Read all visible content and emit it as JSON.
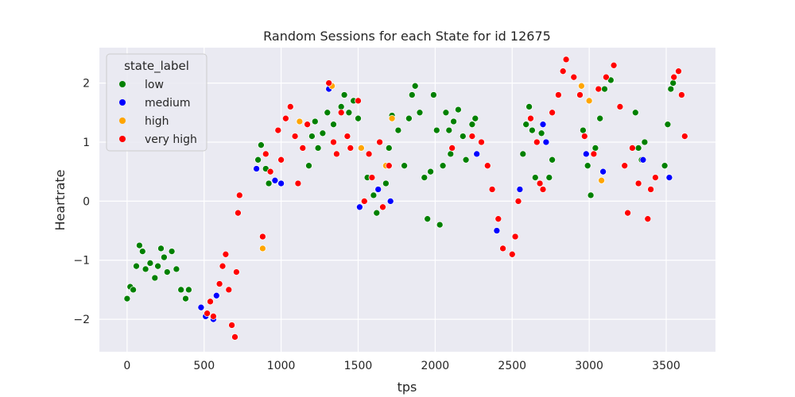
{
  "chart_data": {
    "type": "scatter",
    "title": "Random Sessions for each State for id 12675",
    "xlabel": "tps",
    "ylabel": "Heartrate",
    "xlim": [
      -180,
      3820
    ],
    "ylim": [
      -2.55,
      2.6
    ],
    "xticks": [
      0,
      500,
      1000,
      1500,
      2000,
      2500,
      3000,
      3500
    ],
    "xtick_labels": [
      "0",
      "500",
      "1000",
      "1500",
      "2000",
      "2500",
      "3000",
      "3500"
    ],
    "yticks": [
      -2,
      -1,
      0,
      1,
      2
    ],
    "ytick_labels": [
      "−2",
      "−1",
      "0",
      "1",
      "2"
    ],
    "grid": true,
    "legend": {
      "title": "state_label",
      "placement": "top-left",
      "entries": [
        {
          "label": "low",
          "color": "#008000"
        },
        {
          "label": "medium",
          "color": "#0000ff"
        },
        {
          "label": "high",
          "color": "#ffa500"
        },
        {
          "label": "very high",
          "color": "#ff0000"
        }
      ]
    },
    "series": [
      {
        "name": "low",
        "color": "#008000",
        "points": [
          [
            0,
            -1.65
          ],
          [
            20,
            -1.45
          ],
          [
            40,
            -1.5
          ],
          [
            60,
            -1.1
          ],
          [
            80,
            -0.75
          ],
          [
            100,
            -0.85
          ],
          [
            120,
            -1.15
          ],
          [
            150,
            -1.05
          ],
          [
            180,
            -1.3
          ],
          [
            200,
            -1.1
          ],
          [
            220,
            -0.8
          ],
          [
            240,
            -0.95
          ],
          [
            260,
            -1.2
          ],
          [
            290,
            -0.85
          ],
          [
            320,
            -1.15
          ],
          [
            350,
            -1.5
          ],
          [
            380,
            -1.65
          ],
          [
            400,
            -1.5
          ],
          [
            850,
            0.7
          ],
          [
            870,
            0.95
          ],
          [
            900,
            0.55
          ],
          [
            920,
            0.3
          ],
          [
            1180,
            0.6
          ],
          [
            1200,
            1.1
          ],
          [
            1220,
            1.35
          ],
          [
            1240,
            0.9
          ],
          [
            1270,
            1.15
          ],
          [
            1300,
            1.5
          ],
          [
            1340,
            1.3
          ],
          [
            1390,
            1.6
          ],
          [
            1410,
            1.8
          ],
          [
            1440,
            1.5
          ],
          [
            1470,
            1.7
          ],
          [
            1500,
            1.4
          ],
          [
            1520,
            0.9
          ],
          [
            1560,
            0.4
          ],
          [
            1600,
            0.1
          ],
          [
            1620,
            -0.2
          ],
          [
            1680,
            0.3
          ],
          [
            1700,
            0.9
          ],
          [
            1720,
            1.45
          ],
          [
            1760,
            1.2
          ],
          [
            1800,
            0.6
          ],
          [
            1830,
            1.4
          ],
          [
            1850,
            1.8
          ],
          [
            1870,
            1.95
          ],
          [
            1900,
            1.5
          ],
          [
            1930,
            0.4
          ],
          [
            1950,
            -0.3
          ],
          [
            1970,
            0.5
          ],
          [
            1990,
            1.8
          ],
          [
            2010,
            1.2
          ],
          [
            2030,
            -0.4
          ],
          [
            2050,
            0.6
          ],
          [
            2070,
            1.5
          ],
          [
            2090,
            1.2
          ],
          [
            2100,
            0.8
          ],
          [
            2120,
            1.35
          ],
          [
            2150,
            1.55
          ],
          [
            2180,
            1.1
          ],
          [
            2200,
            0.7
          ],
          [
            2240,
            1.3
          ],
          [
            2260,
            1.4
          ],
          [
            2570,
            0.8
          ],
          [
            2590,
            1.3
          ],
          [
            2610,
            1.6
          ],
          [
            2630,
            1.2
          ],
          [
            2650,
            0.4
          ],
          [
            2690,
            1.15
          ],
          [
            2740,
            0.4
          ],
          [
            2760,
            0.7
          ],
          [
            2960,
            1.2
          ],
          [
            2990,
            0.6
          ],
          [
            3010,
            0.1
          ],
          [
            3040,
            0.9
          ],
          [
            3070,
            1.4
          ],
          [
            3100,
            1.9
          ],
          [
            3140,
            2.05
          ],
          [
            3300,
            1.5
          ],
          [
            3320,
            0.9
          ],
          [
            3340,
            0.7
          ],
          [
            3360,
            1.0
          ],
          [
            3490,
            0.6
          ],
          [
            3510,
            1.3
          ],
          [
            3530,
            1.9
          ],
          [
            3545,
            2.0
          ]
        ]
      },
      {
        "name": "medium",
        "color": "#0000ff",
        "points": [
          [
            480,
            -1.8
          ],
          [
            510,
            -1.95
          ],
          [
            560,
            -2.0
          ],
          [
            580,
            -1.6
          ],
          [
            840,
            0.55
          ],
          [
            960,
            0.35
          ],
          [
            1000,
            0.3
          ],
          [
            1310,
            1.9
          ],
          [
            1510,
            -0.1
          ],
          [
            1630,
            0.2
          ],
          [
            1710,
            0.0
          ],
          [
            2270,
            0.8
          ],
          [
            2400,
            -0.5
          ],
          [
            2550,
            0.2
          ],
          [
            2700,
            1.3
          ],
          [
            2720,
            1.0
          ],
          [
            2980,
            0.8
          ],
          [
            3090,
            0.5
          ],
          [
            3350,
            0.7
          ],
          [
            3520,
            0.4
          ]
        ]
      },
      {
        "name": "high",
        "color": "#ffa500",
        "points": [
          [
            880,
            -0.8
          ],
          [
            1120,
            1.35
          ],
          [
            1330,
            1.95
          ],
          [
            1520,
            0.9
          ],
          [
            1680,
            0.6
          ],
          [
            1720,
            1.4
          ],
          [
            2950,
            1.95
          ],
          [
            3000,
            1.7
          ],
          [
            3080,
            0.35
          ]
        ]
      },
      {
        "name": "very high",
        "color": "#ff0000",
        "points": [
          [
            520,
            -1.9
          ],
          [
            540,
            -1.7
          ],
          [
            560,
            -1.95
          ],
          [
            600,
            -1.4
          ],
          [
            620,
            -1.1
          ],
          [
            640,
            -0.9
          ],
          [
            660,
            -1.5
          ],
          [
            680,
            -2.1
          ],
          [
            700,
            -2.3
          ],
          [
            710,
            -1.2
          ],
          [
            720,
            -0.2
          ],
          [
            730,
            0.1
          ],
          [
            880,
            -0.6
          ],
          [
            900,
            0.8
          ],
          [
            930,
            0.5
          ],
          [
            980,
            1.2
          ],
          [
            1000,
            0.7
          ],
          [
            1030,
            1.4
          ],
          [
            1060,
            1.6
          ],
          [
            1090,
            1.1
          ],
          [
            1110,
            0.3
          ],
          [
            1140,
            0.9
          ],
          [
            1170,
            1.3
          ],
          [
            1310,
            2.0
          ],
          [
            1340,
            1.0
          ],
          [
            1360,
            0.8
          ],
          [
            1390,
            1.5
          ],
          [
            1430,
            1.1
          ],
          [
            1450,
            0.9
          ],
          [
            1500,
            1.7
          ],
          [
            1540,
            0.0
          ],
          [
            1570,
            0.8
          ],
          [
            1590,
            0.4
          ],
          [
            1640,
            1.0
          ],
          [
            1660,
            -0.1
          ],
          [
            1700,
            0.6
          ],
          [
            2110,
            0.9
          ],
          [
            2240,
            1.1
          ],
          [
            2300,
            1.0
          ],
          [
            2340,
            0.6
          ],
          [
            2370,
            0.2
          ],
          [
            2410,
            -0.3
          ],
          [
            2440,
            -0.8
          ],
          [
            2500,
            -0.9
          ],
          [
            2520,
            -0.6
          ],
          [
            2540,
            0.0
          ],
          [
            2620,
            1.4
          ],
          [
            2660,
            1.0
          ],
          [
            2680,
            0.3
          ],
          [
            2700,
            0.2
          ],
          [
            2760,
            1.5
          ],
          [
            2800,
            1.8
          ],
          [
            2830,
            2.2
          ],
          [
            2850,
            2.4
          ],
          [
            2900,
            2.1
          ],
          [
            2940,
            1.8
          ],
          [
            2970,
            1.1
          ],
          [
            3030,
            0.8
          ],
          [
            3060,
            1.9
          ],
          [
            3110,
            2.1
          ],
          [
            3160,
            2.3
          ],
          [
            3200,
            1.6
          ],
          [
            3230,
            0.6
          ],
          [
            3250,
            -0.2
          ],
          [
            3280,
            0.9
          ],
          [
            3320,
            0.3
          ],
          [
            3380,
            -0.3
          ],
          [
            3400,
            0.2
          ],
          [
            3430,
            0.4
          ],
          [
            3550,
            2.1
          ],
          [
            3580,
            2.2
          ],
          [
            3600,
            1.8
          ],
          [
            3620,
            1.1
          ]
        ]
      }
    ]
  }
}
